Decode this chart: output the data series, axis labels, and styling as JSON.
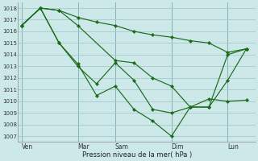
{
  "title": "",
  "xlabel": "Pression niveau de la mer( hPa )",
  "bg_color": "#cce8e8",
  "grid_color": "#aacccc",
  "line_color": "#1a6b1a",
  "ylim": [
    1006.5,
    1018.5
  ],
  "yticks": [
    1007,
    1008,
    1009,
    1010,
    1011,
    1012,
    1013,
    1014,
    1015,
    1016,
    1017,
    1018
  ],
  "day_labels": [
    "Ven",
    "Mar",
    "Sam",
    "Dim",
    "Lun"
  ],
  "day_x": [
    0,
    3,
    5,
    8,
    11
  ],
  "xlim": [
    -0.2,
    12.5
  ],
  "series1_x": [
    0,
    1,
    2,
    3,
    4,
    5,
    6,
    7,
    8,
    9,
    10,
    11,
    12
  ],
  "series1_y": [
    1016.5,
    1018.0,
    1017.8,
    1017.2,
    1016.8,
    1016.5,
    1016.0,
    1015.7,
    1015.5,
    1015.2,
    1015.0,
    1014.2,
    1014.5
  ],
  "series2_x": [
    0,
    1,
    2,
    3,
    5,
    6,
    7,
    8,
    9,
    10,
    11,
    12
  ],
  "series2_y": [
    1016.5,
    1018.0,
    1017.8,
    1016.5,
    1013.5,
    1013.3,
    1012.0,
    1011.3,
    1009.5,
    1009.5,
    1014.0,
    1014.5
  ],
  "series3_x": [
    0,
    1,
    2,
    3,
    4,
    5,
    6,
    7,
    8,
    9,
    10,
    11,
    12
  ],
  "series3_y": [
    1016.5,
    1018.0,
    1015.0,
    1013.0,
    1011.5,
    1013.3,
    1011.8,
    1009.3,
    1009.0,
    1009.5,
    1009.5,
    1011.8,
    1014.5
  ],
  "series4_x": [
    0,
    1,
    2,
    3,
    4,
    5,
    6,
    7,
    8,
    9,
    10,
    11,
    12
  ],
  "series4_y": [
    1016.5,
    1018.0,
    1015.0,
    1013.2,
    1010.5,
    1011.3,
    1009.3,
    1008.3,
    1007.0,
    1009.5,
    1010.2,
    1010.0,
    1010.1
  ]
}
